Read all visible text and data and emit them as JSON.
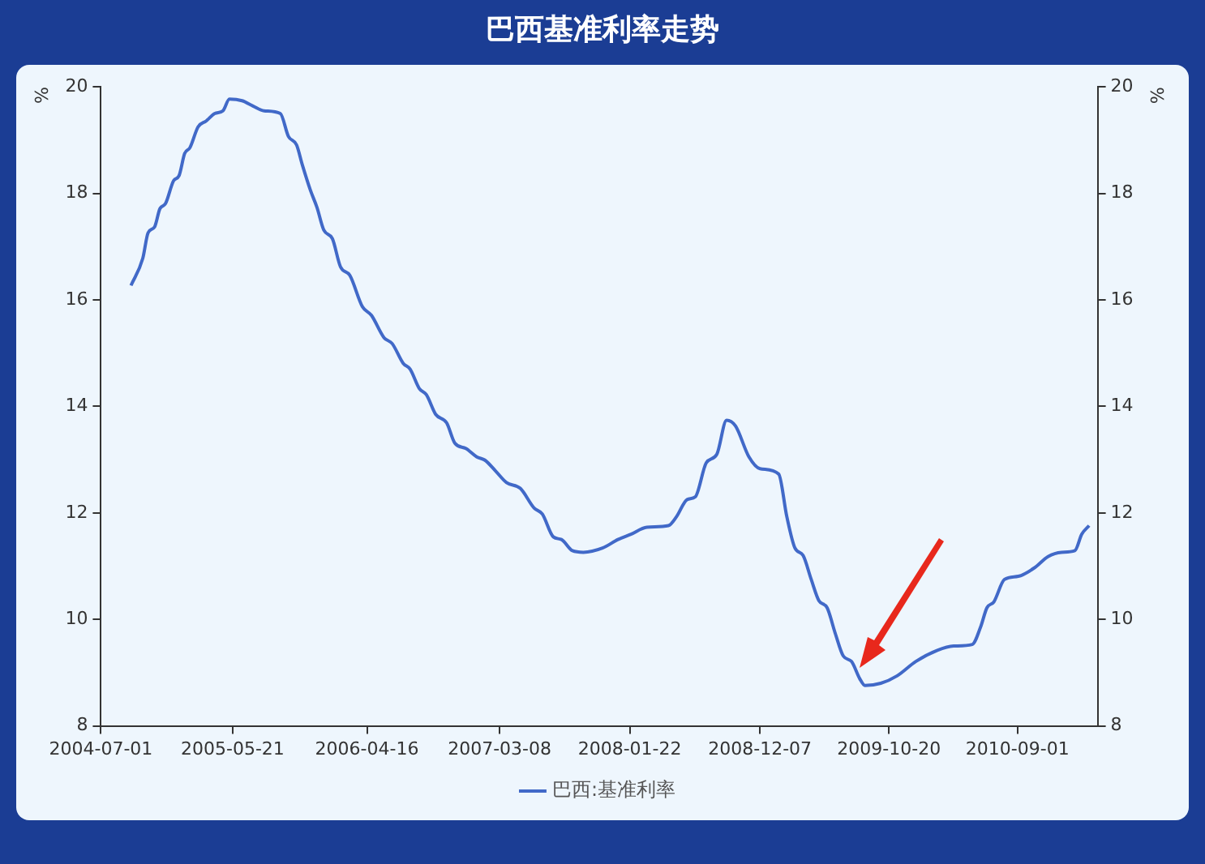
{
  "chart_data": {
    "type": "line",
    "title": "巴西基准利率走势",
    "ylabel": "%",
    "y2label": "%",
    "legend": "bottom",
    "grid": false,
    "marker": "none",
    "line_style": "solid",
    "xlim": [
      "2004-07-01",
      "2011-03-17"
    ],
    "xticks": [
      "2004-07-01",
      "2005-05-21",
      "2006-04-16",
      "2007-03-08",
      "2008-01-22",
      "2008-12-07",
      "2009-10-20",
      "2010-09-01"
    ],
    "ylim": [
      8,
      20
    ],
    "yticks": [
      8,
      10,
      12,
      14,
      16,
      18,
      20
    ],
    "y2lim": [
      8,
      20
    ],
    "y2ticks": [
      8,
      10,
      12,
      14,
      16,
      18,
      20
    ],
    "x": [
      "2004-09-13",
      "2004-10-12",
      "2004-10-25",
      "2004-11-10",
      "2004-11-23",
      "2004-12-07",
      "2004-12-27",
      "2005-01-09",
      "2005-01-23",
      "2005-02-05",
      "2005-02-25",
      "2005-03-17",
      "2005-04-07",
      "2005-04-27",
      "2005-05-13",
      "2005-06-13",
      "2005-07-10",
      "2005-08-06",
      "2005-09-15",
      "2005-10-05",
      "2005-10-25",
      "2005-11-08",
      "2005-11-28",
      "2005-12-14",
      "2005-12-31",
      "2006-01-21",
      "2006-02-10",
      "2006-03-05",
      "2006-04-05",
      "2006-04-27",
      "2006-05-28",
      "2006-06-17",
      "2006-07-14",
      "2006-07-31",
      "2006-08-23",
      "2006-09-09",
      "2006-10-02",
      "2006-10-29",
      "2006-11-18",
      "2006-12-15",
      "2007-01-11",
      "2007-01-31",
      "2007-02-27",
      "2007-03-25",
      "2007-04-28",
      "2007-06-01",
      "2007-06-21",
      "2007-07-18",
      "2007-08-07",
      "2007-09-03",
      "2007-09-30",
      "2007-11-16",
      "2007-12-24",
      "2008-01-25",
      "2008-03-04",
      "2008-04-26",
      "2008-05-16",
      "2008-06-11",
      "2008-07-01",
      "2008-07-28",
      "2008-08-23",
      "2008-09-16",
      "2008-10-08",
      "2008-11-10",
      "2008-12-07",
      "2009-01-22",
      "2009-02-11",
      "2009-03-03",
      "2009-03-23",
      "2009-04-12",
      "2009-05-01",
      "2009-05-21",
      "2009-06-10",
      "2009-06-30",
      "2009-07-20",
      "2009-08-09",
      "2009-08-22",
      "2009-09-30",
      "2009-11-09",
      "2009-12-25",
      "2010-02-16",
      "2010-03-28",
      "2010-05-13",
      "2010-06-02",
      "2010-06-18",
      "2010-07-05",
      "2010-07-31",
      "2010-09-03",
      "2010-10-13",
      "2010-11-15",
      "2010-12-18",
      "2011-01-20",
      "2011-02-06",
      "2011-02-24"
    ],
    "series": [
      {
        "name": "巴西:基准利率",
        "color": "#4169c8",
        "values": [
          16.27,
          16.78,
          17.26,
          17.37,
          17.71,
          17.81,
          18.24,
          18.33,
          18.75,
          18.86,
          19.25,
          19.36,
          19.5,
          19.55,
          19.77,
          19.74,
          19.64,
          19.55,
          19.5,
          19.07,
          18.91,
          18.54,
          18.06,
          17.74,
          17.31,
          17.15,
          16.62,
          16.46,
          15.87,
          15.71,
          15.29,
          15.18,
          14.81,
          14.7,
          14.33,
          14.22,
          13.85,
          13.69,
          13.31,
          13.21,
          13.05,
          12.99,
          12.78,
          12.57,
          12.46,
          12.09,
          11.98,
          11.55,
          11.5,
          11.29,
          11.26,
          11.34,
          11.5,
          11.6,
          11.73,
          11.76,
          11.93,
          12.25,
          12.3,
          12.94,
          13.1,
          13.74,
          13.63,
          13.05,
          12.83,
          12.73,
          11.93,
          11.34,
          11.2,
          10.75,
          10.35,
          10.22,
          9.74,
          9.31,
          9.21,
          8.89,
          8.76,
          8.8,
          8.94,
          9.21,
          9.42,
          9.5,
          9.53,
          9.85,
          10.22,
          10.33,
          10.75,
          10.81,
          10.97,
          11.18,
          11.26,
          11.29,
          11.6,
          11.76
        ]
      }
    ]
  }
}
